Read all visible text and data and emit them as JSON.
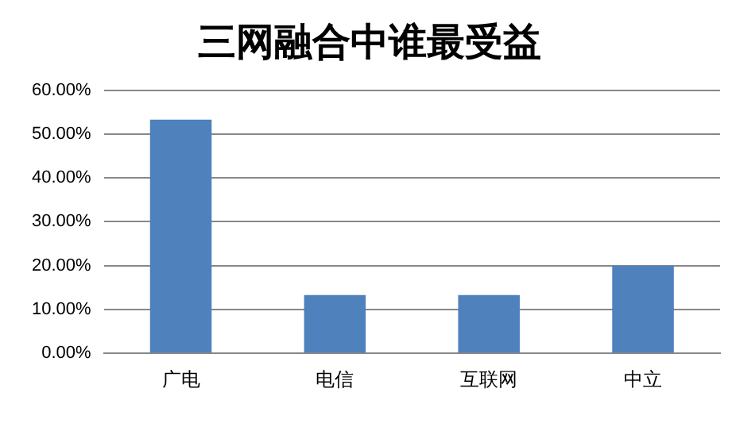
{
  "chart_data": {
    "type": "bar",
    "title": "三网融合中谁最受益",
    "categories": [
      "广电",
      "电信",
      "互联网",
      "中立"
    ],
    "values": [
      53.3,
      13.3,
      13.3,
      20
    ],
    "color": "#4f81bd",
    "ylim": [
      0,
      60
    ],
    "yticks": [
      {
        "value": 0,
        "label": "0.00%"
      },
      {
        "value": 10,
        "label": "10.00%"
      },
      {
        "value": 20,
        "label": "20.00%"
      },
      {
        "value": 30,
        "label": "30.00%"
      },
      {
        "value": 40,
        "label": "40.00%"
      },
      {
        "value": 50,
        "label": "50.00%"
      },
      {
        "value": 60,
        "label": "60.00%"
      }
    ],
    "grid": "y",
    "legend": false
  }
}
